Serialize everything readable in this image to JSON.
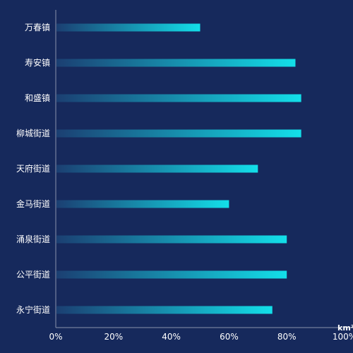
{
  "colors": {
    "background": "#16295c",
    "bar_start": "#1b3f72",
    "bar_end": "#13dfe9",
    "axis": "#8a93ad"
  },
  "chart_data": {
    "type": "bar",
    "orientation": "horizontal",
    "categories": [
      "万春镇",
      "寿安镇",
      "和盛镇",
      "柳城街道",
      "天府街道",
      "金马街道",
      "涌泉街道",
      "公平街道",
      "永宁街道"
    ],
    "values": [
      50,
      83,
      85,
      85,
      70,
      60,
      80,
      80,
      75
    ],
    "xlim": [
      0,
      100
    ],
    "x_ticks": [
      "0%",
      "20%",
      "40%",
      "60%",
      "80%",
      "100%"
    ],
    "x_unit": "km²",
    "grid": false,
    "legend": "none"
  }
}
